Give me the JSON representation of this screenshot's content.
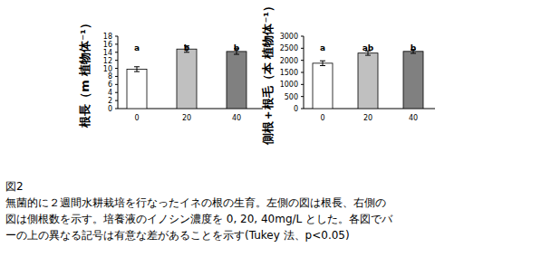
{
  "chart_data": [
    {
      "type": "bar",
      "ylabel": "根長（m 植物体⁻¹）",
      "categories": [
        "0",
        "20",
        "40"
      ],
      "values": [
        9.8,
        14.8,
        14.2
      ],
      "errors": [
        0.6,
        0.8,
        0.7
      ],
      "letters": [
        "a",
        "b",
        "b"
      ],
      "colors": [
        "#ffffff",
        "#c0c0c0",
        "#808080"
      ],
      "ylim": [
        0,
        18
      ],
      "yticks": [
        0,
        2,
        4,
        6,
        8,
        10,
        12,
        14,
        16,
        18
      ],
      "grid": false
    },
    {
      "type": "bar",
      "ylabel": "側根＋根毛（本 植物体⁻¹）",
      "categories": [
        "0",
        "20",
        "40"
      ],
      "values": [
        1880,
        2300,
        2370
      ],
      "errors": [
        100,
        90,
        80
      ],
      "letters": [
        "a",
        "ab",
        "b"
      ],
      "colors": [
        "#ffffff",
        "#c0c0c0",
        "#808080"
      ],
      "ylim": [
        0,
        3000
      ],
      "yticks": [
        0,
        500,
        1000,
        1500,
        2000,
        2500,
        3000
      ],
      "grid": false
    }
  ],
  "caption": {
    "figure": "図2",
    "lines": [
      "無菌的に２週間水耕栽培を行なったイネの根の生育。左側の図は根長、右側の",
      "図は側根数を示す。培養液のイノシン濃度を 0, 20, 40mg/L とした。各図でバ",
      "ーの上の異なる記号は有意な差があることを示す(Tukey 法、p<0.05)"
    ]
  }
}
